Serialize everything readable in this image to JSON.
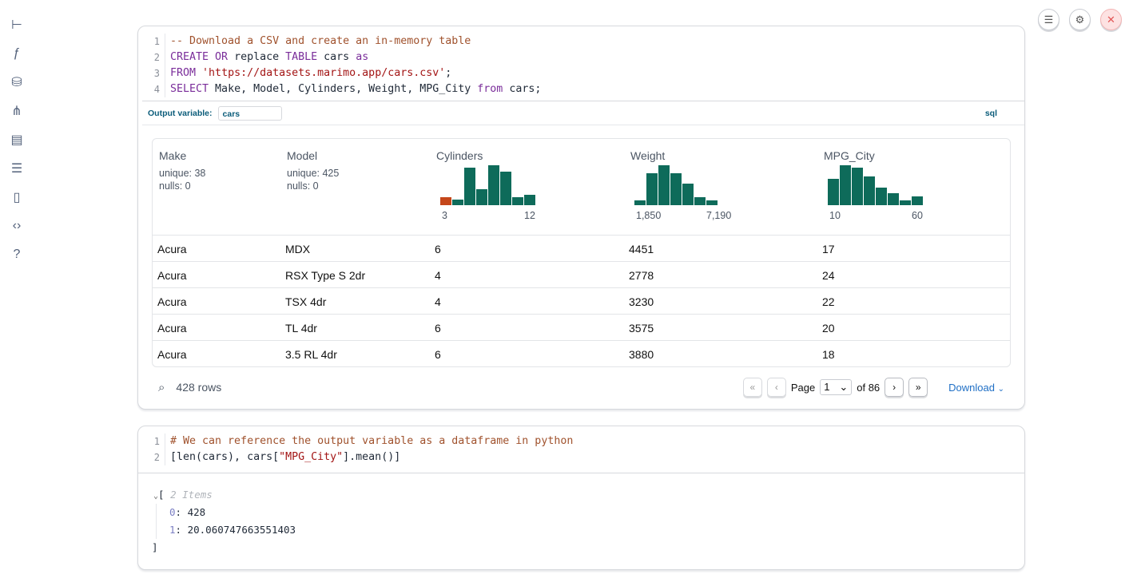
{
  "sidebar": {
    "icons": [
      "file-tree-icon",
      "function-icon",
      "database-icon",
      "dependency-graph-icon",
      "scroll-icon",
      "search-list-icon",
      "document-icon",
      "code-snippet-icon",
      "help-icon"
    ]
  },
  "topbar": {
    "icons": [
      "menu-icon",
      "settings-icon",
      "close-icon"
    ],
    "colors": {
      "close_bg": "#fde2e2",
      "close_fg": "#e25555"
    }
  },
  "cell1": {
    "lines": [
      [
        {
          "t": "-- Download a CSV and create an in-memory table",
          "c": "cm"
        }
      ],
      [
        {
          "t": "CREATE OR",
          "c": "kw"
        },
        {
          "t": " replace ",
          "c": ""
        },
        {
          "t": "TABLE",
          "c": "kw"
        },
        {
          "t": " cars ",
          "c": ""
        },
        {
          "t": "as",
          "c": "kw"
        }
      ],
      [
        {
          "t": "FROM",
          "c": "kw"
        },
        {
          "t": " ",
          "c": ""
        },
        {
          "t": "'https://datasets.marimo.app/cars.csv'",
          "c": "str"
        },
        {
          "t": ";",
          "c": ""
        }
      ],
      [
        {
          "t": "SELECT",
          "c": "kw"
        },
        {
          "t": " Make, Model, Cylinders, Weight, MPG_City ",
          "c": ""
        },
        {
          "t": "from",
          "c": "kw"
        },
        {
          "t": " cars;",
          "c": ""
        }
      ]
    ],
    "output_variable_label": "Output variable:",
    "output_variable_value": "cars",
    "language": "sql"
  },
  "table": {
    "columns": [
      {
        "name": "Make",
        "stats": [
          "unique: 38",
          "nulls: 0"
        ]
      },
      {
        "name": "Model",
        "stats": [
          "unique: 425",
          "nulls: 0"
        ]
      },
      {
        "name": "Cylinders",
        "hist": [
          0.2,
          0.14,
          0.94,
          0.4,
          1,
          0.84,
          0.2,
          0.26
        ],
        "highlight": 0,
        "min": "3",
        "max": "12"
      },
      {
        "name": "Weight",
        "hist": [
          0.12,
          0.8,
          1,
          0.8,
          0.54,
          0.2,
          0.12
        ],
        "min": "1,850",
        "max": "7,190"
      },
      {
        "name": "MPG_City",
        "hist": [
          0.66,
          1,
          0.94,
          0.72,
          0.44,
          0.3,
          0.12,
          0.22
        ],
        "min": "10",
        "max": "60"
      }
    ],
    "rows": [
      [
        "Acura",
        "MDX",
        "6",
        "4451",
        "17"
      ],
      [
        "Acura",
        "RSX Type S 2dr",
        "4",
        "2778",
        "24"
      ],
      [
        "Acura",
        "TSX 4dr",
        "4",
        "3230",
        "22"
      ],
      [
        "Acura",
        "TL 4dr",
        "6",
        "3575",
        "20"
      ],
      [
        "Acura",
        "3.5 RL 4dr",
        "6",
        "3880",
        "18"
      ]
    ],
    "row_count": "428 rows",
    "page_label": "Page",
    "page_value": "1",
    "page_of": "of 86",
    "download_label": "Download",
    "colors": {
      "bar": "#0e6b5a",
      "highlight": "#c5471a"
    }
  },
  "cell2": {
    "lines": [
      [
        {
          "t": "# We can reference the output variable as a dataframe in python",
          "c": "cm"
        }
      ],
      [
        {
          "t": "[len(cars), cars[",
          "c": ""
        },
        {
          "t": "\"MPG_City\"",
          "c": "str"
        },
        {
          "t": "].mean()]",
          "c": ""
        }
      ]
    ],
    "output": {
      "open": "[",
      "count": "2 Items",
      "items": [
        {
          "k": "0",
          "v": "428"
        },
        {
          "k": "1",
          "v": "20.060747663551403"
        }
      ],
      "close": "]"
    }
  }
}
